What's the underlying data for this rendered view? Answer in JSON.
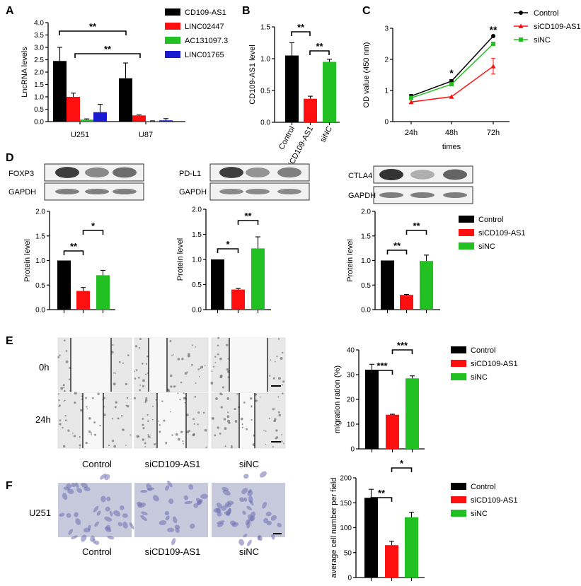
{
  "colors": {
    "black": "#000000",
    "red": "#ff1010",
    "green": "#22c022",
    "blue": "#1a1ad0",
    "axis": "#000000"
  },
  "panels": {
    "A": "A",
    "B": "B",
    "C": "C",
    "D": "D",
    "E": "E",
    "F": "F"
  },
  "labels": {
    "timepoints": [
      "0h",
      "24h"
    ],
    "groups": [
      "Control",
      "siCD109-AS1",
      "siNC"
    ],
    "cell_line": "U251",
    "blots": [
      {
        "protein": "FOXP3",
        "loading": "GAPDH"
      },
      {
        "protein": "PD-L1",
        "loading": "GAPDH"
      },
      {
        "protein": "CTLA4",
        "loading": "GAPDH"
      }
    ]
  },
  "chart_data": [
    {
      "id": "A",
      "type": "bar",
      "ylabel": "LncRNA levels",
      "ylim": [
        0,
        4.0
      ],
      "yticks": [
        "0.0",
        "0.5",
        "1.0",
        "1.5",
        "2.0",
        "2.5",
        "3.0",
        "3.5",
        "4.0"
      ],
      "categories": [
        "U251",
        "U87"
      ],
      "series": [
        {
          "name": "CD109-AS1",
          "color": "#000000",
          "values": [
            2.45,
            1.75
          ],
          "err": [
            0.55,
            0.62
          ]
        },
        {
          "name": "LINC02447",
          "color": "#ff1010",
          "values": [
            1.0,
            0.25
          ],
          "err": [
            0.15,
            0.02
          ]
        },
        {
          "name": "AC131097.3",
          "color": "#22c022",
          "values": [
            0.08,
            0.02
          ],
          "err": [
            0.03,
            0.01
          ]
        },
        {
          "name": "LINC01765",
          "color": "#1a1ad0",
          "values": [
            0.38,
            0.05
          ],
          "err": [
            0.32,
            0.07
          ]
        }
      ],
      "sig": [
        "**",
        "**"
      ]
    },
    {
      "id": "B",
      "type": "bar",
      "ylabel": "CD109-AS1 level",
      "ylim": [
        0,
        1.5
      ],
      "yticks": [
        "0.0",
        "0.5",
        "1.0",
        "1.5"
      ],
      "categories": [
        "Control",
        "siCD109-AS1",
        "siNC"
      ],
      "values": [
        1.05,
        0.37,
        0.95
      ],
      "err": [
        0.2,
        0.04,
        0.04
      ],
      "sig": [
        "**",
        "**"
      ]
    },
    {
      "id": "C",
      "type": "line",
      "xlabel": "times",
      "ylabel": "OD value (450 nm)",
      "ylim": [
        0,
        3
      ],
      "yticks": [
        "0",
        "1",
        "2",
        "3"
      ],
      "x": [
        "24h",
        "48h",
        "72h"
      ],
      "series": [
        {
          "name": "Control",
          "color": "#000000",
          "marker": "circle",
          "values": [
            0.82,
            1.3,
            2.75
          ],
          "err": [
            0.05,
            0.05,
            0.03
          ]
        },
        {
          "name": "siCD109-AS1",
          "color": "#ff1010",
          "marker": "triangle",
          "values": [
            0.63,
            0.8,
            1.78
          ],
          "err": [
            0.03,
            0.03,
            0.25
          ]
        },
        {
          "name": "siNC",
          "color": "#22c022",
          "marker": "square",
          "values": [
            0.76,
            1.2,
            2.5
          ],
          "err": [
            0.04,
            0.05,
            0.05
          ]
        }
      ],
      "sig": [
        "*",
        "**"
      ]
    },
    {
      "id": "D1",
      "type": "bar",
      "ylabel": "Protein level",
      "ylim": [
        0,
        2.0
      ],
      "yticks": [
        "0.0",
        "0.5",
        "1.0",
        "1.5",
        "2.0"
      ],
      "categories": [
        "Control",
        "siCD109-AS1",
        "siNC"
      ],
      "values": [
        1.0,
        0.38,
        0.7
      ],
      "err": [
        0,
        0.07,
        0.1
      ],
      "sig": [
        "**",
        "*"
      ]
    },
    {
      "id": "D2",
      "type": "bar",
      "ylabel": "Protein level",
      "ylim": [
        0,
        2.0
      ],
      "yticks": [
        "0.0",
        "0.5",
        "1.0",
        "1.5",
        "2.0"
      ],
      "categories": [
        "Control",
        "siCD109-AS1",
        "siNC"
      ],
      "values": [
        1.0,
        0.4,
        1.22
      ],
      "err": [
        0,
        0.02,
        0.23
      ],
      "sig": [
        "*",
        "**"
      ]
    },
    {
      "id": "D3",
      "type": "bar",
      "ylabel": "Protein level",
      "ylim": [
        0,
        2.0
      ],
      "yticks": [
        "0.0",
        "0.5",
        "1.0",
        "1.5",
        "2.0"
      ],
      "categories": [
        "Control",
        "siCD109-AS1",
        "siNC"
      ],
      "values": [
        1.0,
        0.3,
        0.99
      ],
      "err": [
        0,
        0.01,
        0.12
      ],
      "sig": [
        "**",
        "**"
      ],
      "legend": [
        "Control",
        "siCD109-AS1",
        "siNC"
      ]
    },
    {
      "id": "E",
      "type": "bar",
      "ylabel": "migration ration (%)",
      "ylim": [
        0,
        40
      ],
      "yticks": [
        "0",
        "10",
        "20",
        "30",
        "40"
      ],
      "categories": [
        "Control",
        "siCD109-AS1",
        "siNC"
      ],
      "values": [
        32,
        13.8,
        28.5
      ],
      "err": [
        2.2,
        0.2,
        1.0
      ],
      "sig": [
        "***",
        "***"
      ],
      "legend": [
        "Control",
        "siCD109-AS1",
        "siNC"
      ]
    },
    {
      "id": "F",
      "type": "bar",
      "ylabel": "average cell number per field",
      "ylim": [
        0,
        200
      ],
      "yticks": [
        "0",
        "50",
        "100",
        "150",
        "200"
      ],
      "categories": [
        "Control",
        "siCD109-AS1",
        "siNC"
      ],
      "values": [
        160,
        65,
        121
      ],
      "err": [
        17,
        8,
        10
      ],
      "sig": [
        "**",
        "*"
      ],
      "legend": [
        "Control",
        "siCD109-AS1",
        "siNC"
      ]
    }
  ]
}
